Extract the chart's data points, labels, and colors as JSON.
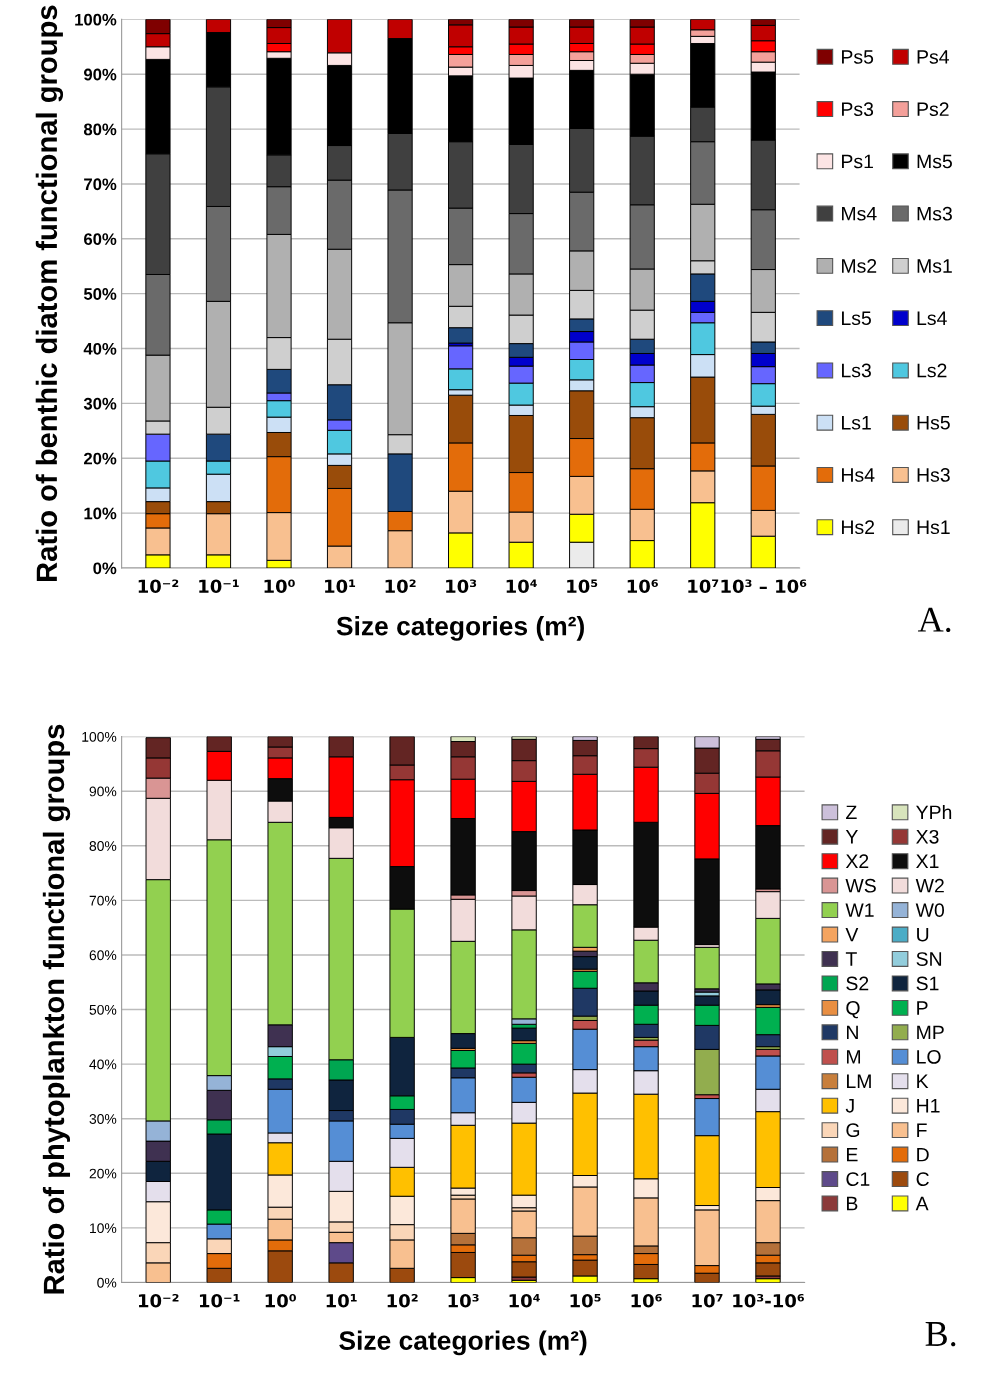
{
  "chart_data": [
    {
      "type": "bar",
      "stacked": true,
      "xlabel": "Size categories (m²)",
      "ylabel": "Ratio of benthic diatom functional groups",
      "categories": [
        "10⁻²",
        "10⁻¹",
        "10⁰",
        "10¹",
        "10²",
        "10³",
        "10⁴",
        "10⁵",
        "10⁶",
        "10⁷",
        "10³ – 10⁶"
      ],
      "ylim": [
        0,
        100
      ],
      "yticks": [
        {
          "value": 0,
          "label": "0%"
        },
        {
          "value": 10,
          "label": "10%"
        },
        {
          "value": 20,
          "label": "20%"
        },
        {
          "value": 30,
          "label": "30%"
        },
        {
          "value": 40,
          "label": "40%"
        },
        {
          "value": 50,
          "label": "50%"
        },
        {
          "value": 60,
          "label": "60%"
        },
        {
          "value": 70,
          "label": "70%"
        },
        {
          "value": 80,
          "label": "80%"
        },
        {
          "value": 90,
          "label": "90%"
        },
        {
          "value": 100,
          "label": "100%"
        }
      ],
      "grid": "y",
      "legend": "right",
      "annotations": [
        "A."
      ],
      "series": [
        {
          "name": "Hs1",
          "color": "#ebebeb",
          "values": [
            0,
            0,
            0,
            0,
            0,
            0,
            0,
            4.7,
            0,
            0,
            0
          ]
        },
        {
          "name": "Hs2",
          "color": "#ffff00",
          "values": [
            2.4,
            2.4,
            1.4,
            0,
            0,
            6.4,
            4.7,
            5.1,
            5.0,
            11.9,
            5.8
          ]
        },
        {
          "name": "Hs3",
          "color": "#f8c090",
          "values": [
            4.9,
            7.5,
            8.7,
            4.0,
            6.8,
            7.6,
            5.5,
            6.9,
            5.7,
            5.8,
            4.7
          ]
        },
        {
          "name": "Hs4",
          "color": "#e36c0a",
          "values": [
            2.6,
            0,
            10.2,
            10.5,
            3.5,
            8.8,
            7.2,
            6.9,
            7.4,
            5.1,
            8.1
          ]
        },
        {
          "name": "Hs5",
          "color": "#994c0a",
          "values": [
            2.2,
            2.2,
            4.4,
            4.2,
            0,
            8.7,
            10.4,
            8.7,
            9.3,
            12.0,
            9.4
          ]
        },
        {
          "name": "Ls1",
          "color": "#cce0f5",
          "values": [
            2.5,
            5.0,
            2.8,
            2.1,
            0,
            1.0,
            1.9,
            2.0,
            2.0,
            4.1,
            1.5
          ]
        },
        {
          "name": "Ls2",
          "color": "#4fc8e0",
          "values": [
            4.9,
            2.4,
            3.0,
            4.3,
            0,
            3.8,
            4.0,
            3.7,
            4.4,
            5.8,
            4.1
          ]
        },
        {
          "name": "Ls3",
          "color": "#6666ff",
          "values": [
            4.9,
            0,
            1.4,
            1.9,
            0,
            4.2,
            3.1,
            3.2,
            3.2,
            1.9,
            3.1
          ]
        },
        {
          "name": "Ls4",
          "color": "#0000cc",
          "values": [
            0,
            0,
            0,
            0,
            0,
            0.5,
            1.6,
            1.9,
            2.1,
            2.0,
            2.4
          ]
        },
        {
          "name": "Ls5",
          "color": "#1f497d",
          "values": [
            0,
            4.9,
            4.3,
            6.4,
            10.5,
            2.8,
            2.5,
            2.3,
            2.6,
            5.0,
            2.1
          ]
        },
        {
          "name": "Ms1",
          "color": "#cfcfcf",
          "values": [
            2.4,
            4.9,
            5.8,
            8.3,
            3.5,
            3.9,
            5.2,
            5.2,
            5.3,
            2.4,
            5.4
          ]
        },
        {
          "name": "Ms2",
          "color": "#b0b0b0",
          "values": [
            12.0,
            19.3,
            18.8,
            16.4,
            20.4,
            7.6,
            7.5,
            7.2,
            7.5,
            10.3,
            7.8
          ]
        },
        {
          "name": "Ms3",
          "color": "#6a6a6a",
          "values": [
            14.7,
            17.3,
            8.7,
            12.6,
            24.2,
            10.3,
            11.0,
            10.7,
            11.7,
            11.4,
            10.9
          ]
        },
        {
          "name": "Ms4",
          "color": "#404040",
          "values": [
            22.0,
            21.8,
            5.8,
            6.3,
            10.3,
            12.1,
            12.6,
            11.6,
            12.5,
            6.3,
            12.7
          ]
        },
        {
          "name": "Ms5",
          "color": "#000000",
          "values": [
            17.2,
            9.9,
            17.6,
            14.6,
            17.3,
            12.0,
            12.1,
            10.6,
            11.3,
            11.6,
            12.4
          ]
        },
        {
          "name": "Ps1",
          "color": "#fce4e4",
          "values": [
            2.3,
            0,
            1.2,
            2.3,
            0,
            1.6,
            2.3,
            1.8,
            2.0,
            1.3,
            1.8
          ]
        },
        {
          "name": "Ps2",
          "color": "#f4a09a",
          "values": [
            0,
            0,
            0,
            0,
            0,
            2.3,
            2.0,
            1.6,
            1.6,
            1.2,
            1.9
          ]
        },
        {
          "name": "Ps3",
          "color": "#ff0000",
          "values": [
            0,
            0,
            1.5,
            0,
            0,
            1.4,
            1.9,
            1.5,
            1.9,
            0,
            2.0
          ]
        },
        {
          "name": "Ps4",
          "color": "#c00000",
          "values": [
            2.4,
            2.4,
            2.9,
            6.1,
            3.5,
            4.0,
            3.1,
            3.0,
            3.1,
            1.9,
            2.8
          ]
        },
        {
          "name": "Ps5",
          "color": "#7f0000",
          "values": [
            2.6,
            0,
            1.5,
            0,
            0,
            1.0,
            1.4,
            1.4,
            1.4,
            0,
            1.1
          ]
        }
      ]
    },
    {
      "type": "bar",
      "stacked": true,
      "xlabel": "Size categories (m²)",
      "ylabel": "Ratio of phytoplankton functional groups",
      "categories": [
        "10⁻²",
        "10⁻¹",
        "10⁰",
        "10¹",
        "10²",
        "10³",
        "10⁴",
        "10⁵",
        "10⁶",
        "10⁷",
        "10³-10⁶"
      ],
      "ylim": [
        0,
        100
      ],
      "yticks": [
        {
          "value": 0,
          "label": "0%"
        },
        {
          "value": 10,
          "label": "10%"
        },
        {
          "value": 20,
          "label": "20%"
        },
        {
          "value": 30,
          "label": "30%"
        },
        {
          "value": 40,
          "label": "40%"
        },
        {
          "value": 50,
          "label": "50%"
        },
        {
          "value": 60,
          "label": "60%"
        },
        {
          "value": 70,
          "label": "70%"
        },
        {
          "value": 80,
          "label": "80%"
        },
        {
          "value": 90,
          "label": "90%"
        },
        {
          "value": 100,
          "label": "100%"
        }
      ],
      "grid": "y",
      "legend": "right",
      "annotations": [
        "B."
      ],
      "series": [
        {
          "name": "A",
          "color": "#ffff00",
          "values": [
            0,
            0,
            0,
            0,
            0,
            0.9,
            0.4,
            1.2,
            0.7,
            0,
            0.7
          ]
        },
        {
          "name": "B",
          "color": "#8b3a3a",
          "values": [
            0,
            0,
            0,
            0,
            0,
            0,
            0.6,
            0,
            0,
            0,
            0.5
          ]
        },
        {
          "name": "C",
          "color": "#9c4a0e",
          "values": [
            0,
            2.6,
            5.8,
            3.6,
            2.6,
            4.6,
            2.8,
            2.9,
            2.6,
            1.7,
            2.4
          ]
        },
        {
          "name": "C1",
          "color": "#5e4a8a",
          "values": [
            0,
            0,
            0,
            3.7,
            0,
            0,
            0,
            0,
            0,
            0,
            0
          ]
        },
        {
          "name": "D",
          "color": "#e36c0a",
          "values": [
            0,
            2.7,
            2.0,
            0,
            0,
            1.4,
            1.2,
            1.0,
            2.0,
            1.4,
            1.4
          ]
        },
        {
          "name": "E",
          "color": "#b5713a",
          "values": [
            0,
            0,
            0,
            0,
            0,
            2.1,
            3.2,
            3.4,
            1.4,
            0,
            2.3
          ]
        },
        {
          "name": "F",
          "color": "#f8c090",
          "values": [
            3.6,
            0,
            3.8,
            1.9,
            5.2,
            6.3,
            4.9,
            9.0,
            8.8,
            10.2,
            7.7
          ]
        },
        {
          "name": "G",
          "color": "#fad6b8",
          "values": [
            3.7,
            2.7,
            2.2,
            1.9,
            2.8,
            0.7,
            0.6,
            0,
            0,
            0,
            0
          ]
        },
        {
          "name": "H1",
          "color": "#fce8da",
          "values": [
            7.5,
            0,
            5.9,
            5.6,
            5.2,
            1.3,
            2.3,
            2.1,
            3.5,
            0.8,
            2.4
          ]
        },
        {
          "name": "J",
          "color": "#ffc000",
          "values": [
            0,
            0,
            5.9,
            0,
            5.3,
            11.5,
            13.2,
            15.1,
            15.5,
            12.8,
            13.9
          ]
        },
        {
          "name": "K",
          "color": "#e4dfec",
          "values": [
            3.7,
            0,
            1.8,
            5.5,
            5.3,
            2.3,
            3.8,
            4.3,
            4.3,
            0,
            4.1
          ]
        },
        {
          "name": "LM",
          "color": "#c87f3c",
          "values": [
            0,
            0,
            0,
            0,
            0,
            0,
            0,
            0,
            0,
            0,
            0
          ]
        },
        {
          "name": "LO",
          "color": "#558ed5",
          "values": [
            0,
            2.7,
            8.0,
            7.4,
            2.6,
            6.4,
            4.6,
            7.4,
            4.4,
            6.8,
            6.1
          ]
        },
        {
          "name": "M",
          "color": "#c0504d",
          "values": [
            0,
            0,
            0,
            0,
            0,
            0,
            0.8,
            1.6,
            1.2,
            0.7,
            1.2
          ]
        },
        {
          "name": "MP",
          "color": "#92ad4e",
          "values": [
            0,
            0,
            0,
            0,
            0,
            0,
            0,
            0.8,
            0.5,
            8.3,
            0.5
          ]
        },
        {
          "name": "N",
          "color": "#1f3864",
          "values": [
            0,
            0,
            1.9,
            1.9,
            2.7,
            1.8,
            1.6,
            5.1,
            2.4,
            4.4,
            2.2
          ]
        },
        {
          "name": "P",
          "color": "#00b050",
          "values": [
            0,
            2.6,
            4.1,
            0,
            2.5,
            3.2,
            3.8,
            3.1,
            3.5,
            3.7,
            5.0
          ]
        },
        {
          "name": "Q",
          "color": "#e98f42",
          "values": [
            0,
            0,
            0,
            0,
            0,
            0.4,
            0.5,
            0.4,
            0,
            0,
            0.5
          ]
        },
        {
          "name": "S1",
          "color": "#0f243e",
          "values": [
            3.7,
            13.9,
            0,
            5.6,
            10.7,
            2.7,
            2.3,
            2.3,
            2.6,
            1.7,
            2.7
          ]
        },
        {
          "name": "S2",
          "color": "#00a651",
          "values": [
            0,
            2.6,
            0,
            3.7,
            0,
            0,
            0.7,
            0,
            0,
            0,
            0
          ]
        },
        {
          "name": "SN",
          "color": "#92cddc",
          "values": [
            0,
            0,
            1.8,
            0,
            0,
            0,
            0,
            0,
            0,
            0.7,
            0
          ]
        },
        {
          "name": "T",
          "color": "#3f3151",
          "values": [
            3.7,
            5.4,
            4.0,
            0,
            0,
            0,
            0,
            1.0,
            1.5,
            0.6,
            1.1
          ]
        },
        {
          "name": "U",
          "color": "#4bacc6",
          "values": [
            0,
            0,
            0,
            0,
            0,
            0,
            0,
            0,
            0,
            0,
            0
          ]
        },
        {
          "name": "V",
          "color": "#f4a460",
          "values": [
            0,
            0,
            0,
            0,
            0,
            0,
            0,
            0.7,
            0,
            0,
            0
          ]
        },
        {
          "name": "W0",
          "color": "#95b3d7",
          "values": [
            3.7,
            2.7,
            0,
            0,
            0,
            0,
            1.0,
            0,
            0,
            0,
            0
          ]
        },
        {
          "name": "W1",
          "color": "#92d050",
          "values": [
            44.2,
            43.2,
            37.1,
            36.9,
            23.5,
            16.9,
            16.3,
            7.8,
            7.8,
            7.6,
            12.0
          ]
        },
        {
          "name": "W2",
          "color": "#f2dcdb",
          "values": [
            14.9,
            10.9,
            3.9,
            5.6,
            0,
            7.7,
            6.2,
            3.7,
            2.4,
            0.5,
            4.9
          ]
        },
        {
          "name": "WS",
          "color": "#d99594",
          "values": [
            3.7,
            0,
            0,
            0,
            0,
            0.8,
            1.0,
            0,
            0,
            0,
            0.5
          ]
        },
        {
          "name": "X1",
          "color": "#0d0d0d",
          "values": [
            0,
            0,
            4.1,
            1.9,
            7.8,
            14.0,
            10.8,
            10.0,
            19.2,
            15.7,
            11.6
          ]
        },
        {
          "name": "X2",
          "color": "#ff0000",
          "values": [
            0,
            5.3,
            3.8,
            11.1,
            15.9,
            7.2,
            9.2,
            10.2,
            10.1,
            12.0,
            8.9
          ]
        },
        {
          "name": "X3",
          "color": "#953735",
          "values": [
            3.7,
            0,
            2.0,
            0,
            2.7,
            4.1,
            3.8,
            3.4,
            3.4,
            3.7,
            4.8
          ]
        },
        {
          "name": "Y",
          "color": "#632523",
          "values": [
            3.7,
            2.7,
            1.9,
            3.7,
            5.2,
            2.8,
            3.9,
            2.8,
            2.2,
            4.6,
            2.1
          ]
        },
        {
          "name": "YPh",
          "color": "#d8e4bc",
          "values": [
            0,
            0,
            0,
            0,
            0,
            0.9,
            0.5,
            0,
            0,
            0,
            0
          ]
        },
        {
          "name": "Z",
          "color": "#ccc0da",
          "values": [
            0,
            0,
            0,
            0,
            0,
            0,
            0,
            0.7,
            0,
            2.1,
            0.5
          ]
        }
      ]
    }
  ]
}
